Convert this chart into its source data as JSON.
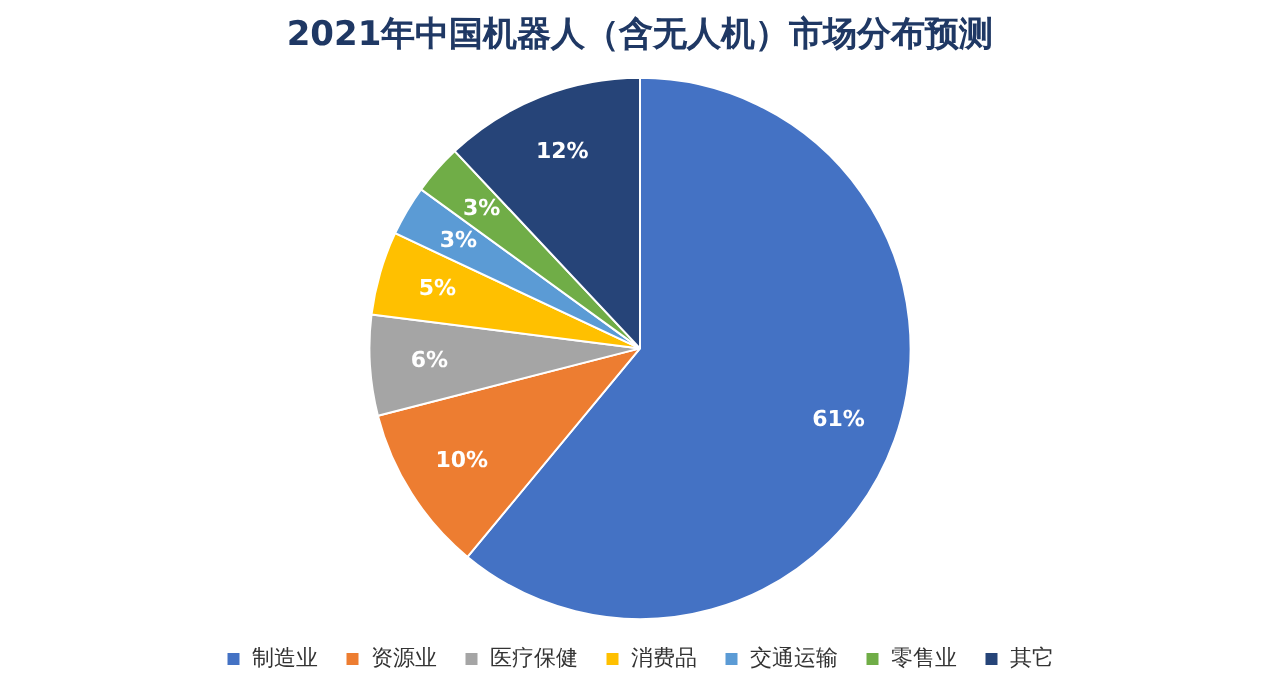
{
  "chart_data": {
    "type": "pie",
    "title": "2021年中国机器人（含无人机）市场分布预测",
    "categories": [
      "制造业",
      "资源业",
      "医疗保健",
      "消费品",
      "交通运输",
      "零售业",
      "其它"
    ],
    "values": [
      61,
      10,
      6,
      5,
      3,
      3,
      12
    ],
    "colors": [
      "#4472c4",
      "#ed7d31",
      "#a5a5a5",
      "#ffc000",
      "#5b9bd5",
      "#70ad47",
      "#264478"
    ],
    "value_labels": [
      "61%",
      "10%",
      "6%",
      "5%",
      "3%",
      "3%",
      "12%"
    ],
    "legend": "bottom"
  }
}
